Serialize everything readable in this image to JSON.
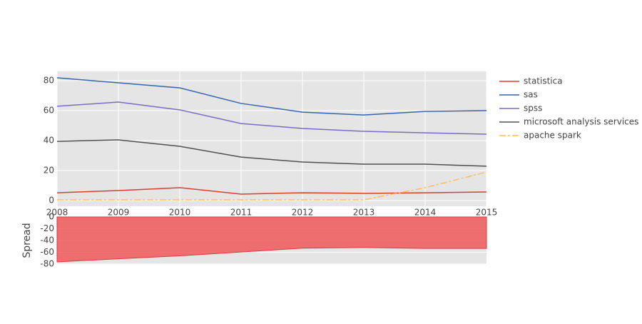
{
  "chart_data": [
    {
      "type": "line",
      "x": [
        2008,
        2009,
        2010,
        2011,
        2012,
        2013,
        2014,
        2015
      ],
      "xlim": [
        2008,
        2015
      ],
      "xticks": [
        2008,
        2009,
        2010,
        2011,
        2012,
        2013,
        2014,
        2015
      ],
      "ylim": [
        -3.8,
        86.2
      ],
      "yticks": [
        0,
        20,
        40,
        60,
        80
      ],
      "grid": true,
      "legend": "right",
      "series": [
        {
          "name": "statistica",
          "color": "#d8402c",
          "values": [
            5.2,
            6.7,
            8.6,
            4.3,
            5.2,
            4.8,
            5.2,
            5.7
          ]
        },
        {
          "name": "sas",
          "color": "#3465ad",
          "values": [
            81.9,
            78.6,
            75.2,
            64.8,
            59.0,
            57.1,
            59.5,
            60.0
          ]
        },
        {
          "name": "spss",
          "color": "#7b6bc9",
          "values": [
            62.9,
            65.7,
            60.5,
            51.4,
            48.1,
            46.2,
            45.2,
            44.3
          ]
        },
        {
          "name": "microsoft analysis services",
          "color": "#505050",
          "values": [
            39.5,
            40.5,
            36.2,
            29.0,
            25.7,
            24.3,
            24.3,
            22.9
          ]
        },
        {
          "name": "apache spark",
          "color": "#ffbe5c",
          "dash": "dashdot",
          "values": [
            0.5,
            0.5,
            0.5,
            0.5,
            0.5,
            0.5,
            8.6,
            19.0
          ]
        }
      ]
    },
    {
      "type": "area",
      "ylabel": "Spread",
      "x": [
        2008,
        2009,
        2010,
        2011,
        2012,
        2013,
        2014,
        2015
      ],
      "xlim": [
        2008,
        2015
      ],
      "ylim": [
        -80,
        0
      ],
      "yticks": [
        -80,
        -60,
        -40,
        -20,
        0
      ],
      "grid": true,
      "color": "#f0595b",
      "values": [
        -76.4,
        -71.0,
        -66.0,
        -59.5,
        -53.0,
        -52.0,
        -53.5,
        -53.5
      ]
    }
  ]
}
